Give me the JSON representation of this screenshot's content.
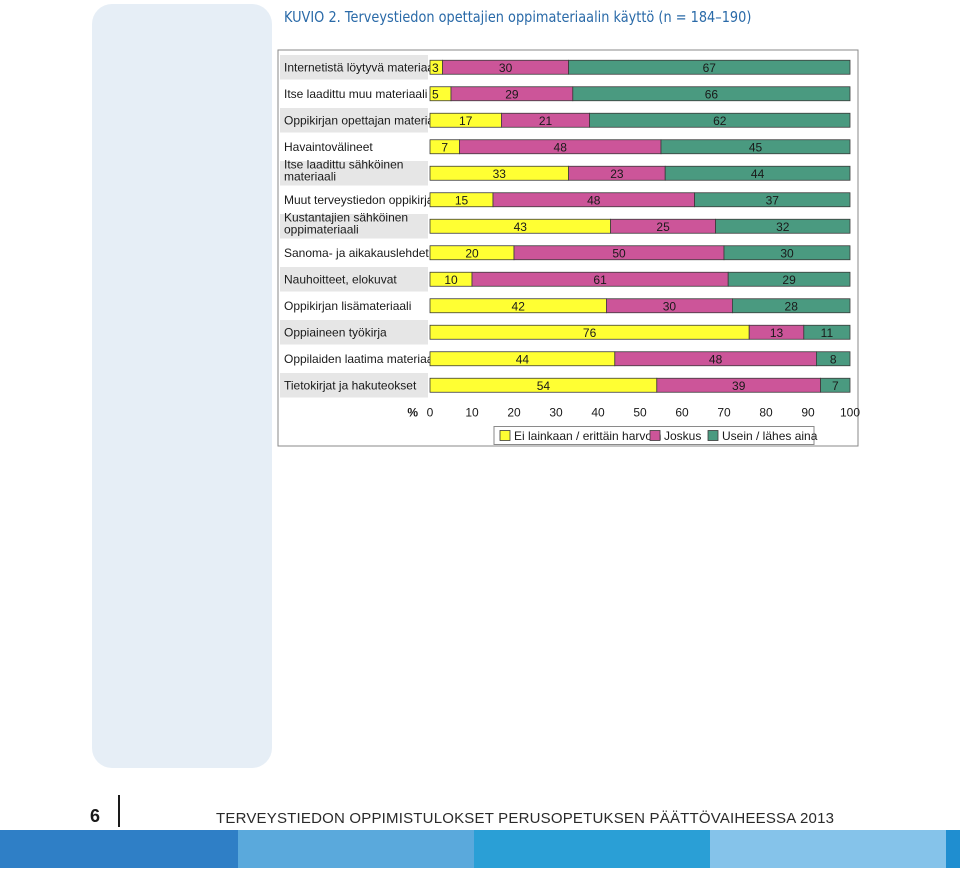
{
  "figure_title": "KUVIO 2. Terveystiedon opettajien oppimateriaalin käyttö (n = 184–190)",
  "footer": {
    "page_number": "6",
    "title": "TERVEYSTIEDON OPPIMISTULOKSET PERUSOPETUKSEN PÄÄTTÖVAIHEESSA 2013"
  },
  "colors": {
    "series": [
      "#ffff33",
      "#cc5599",
      "#4a9a80"
    ],
    "band": [
      "#2f7fc6",
      "#5aa9dc",
      "#2a9fd6",
      "#85c3ea",
      "#1f8ed0"
    ]
  },
  "chart_data": {
    "type": "bar",
    "orientation": "horizontal",
    "stacked": true,
    "categories": [
      [
        "Internetistä löytyvä materiaali"
      ],
      [
        "Itse laadittu muu materiaali"
      ],
      [
        "Oppikirjan opettajan materiaali"
      ],
      [
        "Havaintovälineet"
      ],
      [
        "Itse laadittu sähköinen",
        "materiaali"
      ],
      [
        "Muut terveystiedon oppikirjat"
      ],
      [
        "Kustantajien sähköinen",
        "oppimateriaali"
      ],
      [
        "Sanoma- ja aikakauslehdet"
      ],
      [
        "Nauhoitteet, elokuvat"
      ],
      [
        "Oppikirjan lisämateriaali"
      ],
      [
        "Oppiaineen työkirja"
      ],
      [
        "Oppilaiden laatima materiaali"
      ],
      [
        "Tietokirjat ja hakuteokset"
      ]
    ],
    "series": [
      {
        "name": "Ei lainkaan / erittäin harvoin",
        "values": [
          3,
          5,
          17,
          7,
          33,
          15,
          43,
          20,
          10,
          42,
          76,
          44,
          54
        ]
      },
      {
        "name": "Joskus",
        "values": [
          30,
          29,
          21,
          48,
          23,
          48,
          25,
          50,
          61,
          30,
          13,
          48,
          39
        ]
      },
      {
        "name": "Usein / lähes aina",
        "values": [
          67,
          66,
          62,
          45,
          44,
          37,
          32,
          30,
          29,
          28,
          11,
          8,
          7
        ]
      }
    ],
    "xlim": [
      0,
      100
    ],
    "xticks": [
      "0",
      "10",
      "20",
      "30",
      "40",
      "50",
      "60",
      "70",
      "80",
      "90",
      "100"
    ],
    "xlabel": "%",
    "legend_position": "bottom",
    "grid": false
  }
}
